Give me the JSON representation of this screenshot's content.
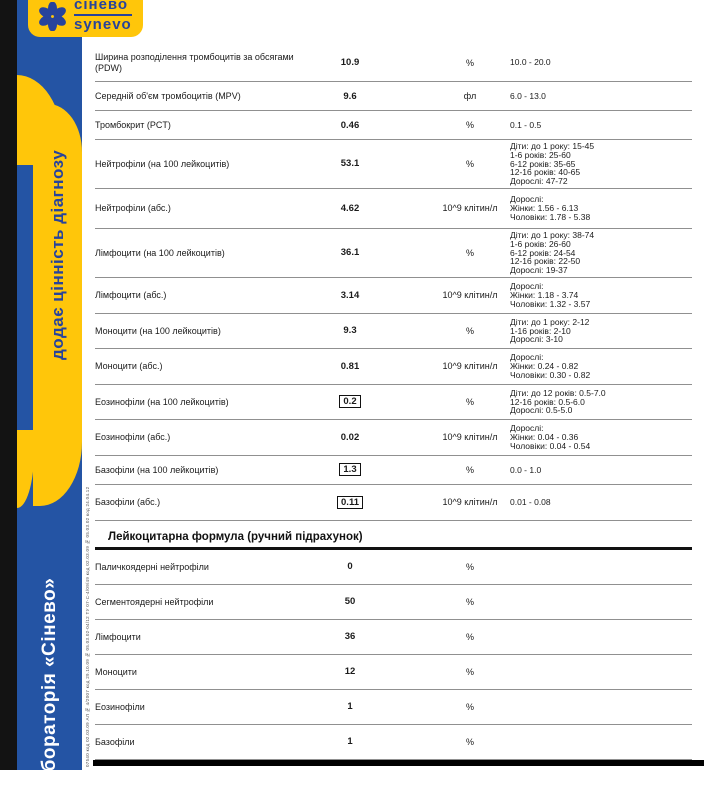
{
  "brand": {
    "logo_text_cyrillic": "сінево",
    "logo_text_latin": "synevo",
    "slogan_vertical": "додає цінність діагнозу",
    "lab_band_text": "лабораторія «Сінево»",
    "margin_microtext": "07540 код 02.03.09 АЛ № 4/2007 код 29.10.09 № 05.03.02-04/12 ТУ 07-С-4/09/49 код 02.03.09 № 05.03.02 код 24.04.12",
    "colors": {
      "brand_blue": "#2454a4",
      "logo_blue": "#27439c",
      "brand_yellow": "#ffc60a"
    }
  },
  "report": {
    "sections": [
      {
        "rows": [
          {
            "name": "Ширина розподілення тромбоцитів за обсягами\n(PDW)",
            "value": "10.9",
            "flagged": false,
            "unit": "%",
            "reference": [
              "10.0 - 20.0"
            ]
          },
          {
            "name": "Середній об'єм тромбоцитів (MPV)",
            "value": "9.6",
            "flagged": false,
            "unit": "фл",
            "reference": [
              "6.0 - 13.0"
            ]
          },
          {
            "name": "Тромбокрит (PCT)",
            "value": "0.46",
            "flagged": false,
            "unit": "%",
            "reference": [
              "0.1 - 0.5"
            ]
          },
          {
            "name": "Нейтрофіли (на 100 лейкоцитів)",
            "value": "53.1",
            "flagged": false,
            "unit": "%",
            "reference": [
              "Діти: до 1 року: 15-45",
              "1-6 років: 25-60",
              "6-12 років: 35-65",
              "12-16 років: 40-65",
              "Дорослі: 47-72"
            ]
          },
          {
            "name": "Нейтрофіли (абс.)",
            "value": "4.62",
            "flagged": false,
            "unit": "10^9 клітин/л",
            "reference": [
              "Дорослі:",
              "Жінки: 1.56 - 6.13",
              "Чоловіки: 1.78 - 5.38"
            ]
          },
          {
            "name": "Лімфоцити (на 100 лейкоцитів)",
            "value": "36.1",
            "flagged": false,
            "unit": "%",
            "reference": [
              "Діти: до 1 року: 38-74",
              "1-6 років: 26-60",
              "6-12 років: 24-54",
              "12-16 років: 22-50",
              "Дорослі: 19-37"
            ]
          },
          {
            "name": "Лімфоцити (абс.)",
            "value": "3.14",
            "flagged": false,
            "unit": "10^9 клітин/л",
            "reference": [
              "Дорослі:",
              "Жінки: 1.18 - 3.74",
              "Чоловіки: 1.32 - 3.57"
            ]
          },
          {
            "name": "Моноцити (на 100 лейкоцитів)",
            "value": "9.3",
            "flagged": false,
            "unit": "%",
            "reference": [
              "Діти: до 1 року: 2-12",
              "1-16 років: 2-10",
              "Дорослі: 3-10"
            ]
          },
          {
            "name": "Моноцити (абс.)",
            "value": "0.81",
            "flagged": false,
            "unit": "10^9 клітин/л",
            "reference": [
              "Дорослі:",
              "Жінки: 0.24 - 0.82",
              "Чоловіки: 0.30 - 0.82"
            ]
          },
          {
            "name": "Еозинофіли (на 100 лейкоцитів)",
            "value": "0.2",
            "flagged": true,
            "unit": "%",
            "reference": [
              "Діти: до 12 років: 0.5-7.0",
              "12-16 років: 0.5-6.0",
              "Дорослі: 0.5-5.0"
            ]
          },
          {
            "name": "Еозинофіли (абс.)",
            "value": "0.02",
            "flagged": false,
            "unit": "10^9 клітин/л",
            "reference": [
              "Дорослі:",
              "Жінки: 0.04 - 0.36",
              "Чоловіки: 0.04 - 0.54"
            ]
          },
          {
            "name": "Базофіли (на 100 лейкоцитів)",
            "value": "1.3",
            "flagged": true,
            "unit": "%",
            "reference": [
              "0.0 - 1.0"
            ]
          },
          {
            "name": "Базофіли (абс.)",
            "value": "0.11",
            "flagged": true,
            "unit": "10^9 клітин/л",
            "reference": [
              "0.01 - 0.08"
            ]
          }
        ]
      },
      {
        "title": "Лейкоцитарна формула (ручний підрахунок)",
        "rows": [
          {
            "name": "Паличкоядерні нейтрофіли",
            "value": "0",
            "flagged": false,
            "unit": "%",
            "reference": []
          },
          {
            "name": "Сегментоядерні нейтрофіли",
            "value": "50",
            "flagged": false,
            "unit": "%",
            "reference": []
          },
          {
            "name": "Лімфоцити",
            "value": "36",
            "flagged": false,
            "unit": "%",
            "reference": []
          },
          {
            "name": "Моноцити",
            "value": "12",
            "flagged": false,
            "unit": "%",
            "reference": []
          },
          {
            "name": "Еозинофіли",
            "value": "1",
            "flagged": false,
            "unit": "%",
            "reference": []
          },
          {
            "name": "Базофіли",
            "value": "1",
            "flagged": false,
            "unit": "%",
            "reference": []
          }
        ]
      }
    ]
  }
}
